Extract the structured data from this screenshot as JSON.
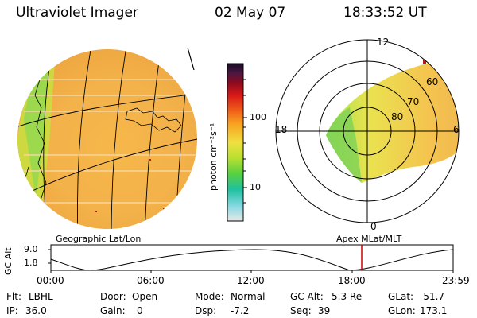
{
  "header": {
    "instrument": "Ultraviolet Imager",
    "date": "02 May 07",
    "time": "18:33:52 UT"
  },
  "colorbar": {
    "unit_label": "photon cm⁻²s⁻¹",
    "ticks": [
      "100",
      "10"
    ]
  },
  "polar_plot": {
    "clock_labels": [
      "12",
      "18",
      "6",
      "0"
    ],
    "lat_labels": [
      "60",
      "70",
      "80"
    ]
  },
  "timeline": {
    "left_label": "Geographic Lat/Lon",
    "right_label": "Apex MLat/MLT",
    "y_axis_label": "GC Alt",
    "y_ticks": [
      "9.0",
      "1.8"
    ],
    "x_ticks": [
      "00:00",
      "06:00",
      "12:00",
      "18:00",
      "23:59"
    ],
    "marker_color": "#cc0000"
  },
  "info_rows": [
    [
      {
        "key": "Flt:",
        "value": "LBHL"
      },
      {
        "key": "Door:",
        "value": "Open"
      },
      {
        "key": "Mode:",
        "value": "Normal"
      },
      {
        "key": "GC Alt:",
        "value": "5.3 Re"
      },
      {
        "key": "GLat:",
        "value": "-51.7"
      }
    ],
    [
      {
        "key": "IP:",
        "value": "36.0"
      },
      {
        "key": "Gain:",
        "value": "0"
      },
      {
        "key": "Dsp:",
        "value": "-7.2"
      },
      {
        "key": "Seq:",
        "value": "39"
      },
      {
        "key": "GLon:",
        "value": "173.1"
      }
    ]
  ]
}
